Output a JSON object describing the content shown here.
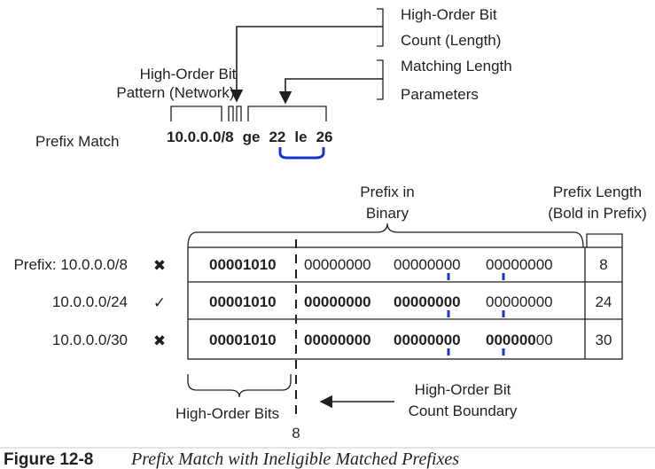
{
  "top": {
    "prefix_match_label": "Prefix Match",
    "command_prefix": "10.0.0.0/8",
    "command_ge": "ge",
    "command_ge_value": "22",
    "command_le": "le",
    "command_le_value": "26",
    "pattern_label_line1": "High-Order Bit",
    "pattern_label_line2": "Pattern (Network)",
    "count_label_line1": "High-Order Bit",
    "count_label_line2": "Count (Length)",
    "matching_length_label": "Matching Length",
    "parameters_label": "Parameters"
  },
  "table": {
    "binary_header_line1": "Prefix in",
    "binary_header_line2": "Binary",
    "length_header_line1": "Prefix Length",
    "length_header_line2": "(Bold in Prefix)",
    "rows": [
      {
        "label": "Prefix: 10.0.0.0/8",
        "mark": "✖",
        "octet1": "00001010",
        "octet2": "00000000",
        "octet3": "00000000",
        "octet4_bold": "",
        "octet4_plain": "00000000",
        "length": "8"
      },
      {
        "label": "10.0.0.0/24",
        "mark": "✓",
        "octet1": "00001010",
        "octet2": "00000000",
        "octet3": "00000000",
        "octet4_bold": "",
        "octet4_plain": "00000000",
        "length": "24"
      },
      {
        "label": "10.0.0.0/30",
        "mark": "✖",
        "octet1": "00001010",
        "octet2": "00000000",
        "octet3": "00000000",
        "octet4_bold": "000000",
        "octet4_plain": "00",
        "length": "30"
      }
    ],
    "high_order_bits_label": "High-Order Bits",
    "boundary_label_line1": "High-Order Bit",
    "boundary_label_line2": "Count Boundary",
    "boundary_value": "8"
  },
  "caption": {
    "number": "Figure 12-8",
    "text": "Prefix Match with Ineligible Matched Prefixes"
  },
  "colors": {
    "line": "#231f20",
    "highlight": "#1a33cc"
  }
}
